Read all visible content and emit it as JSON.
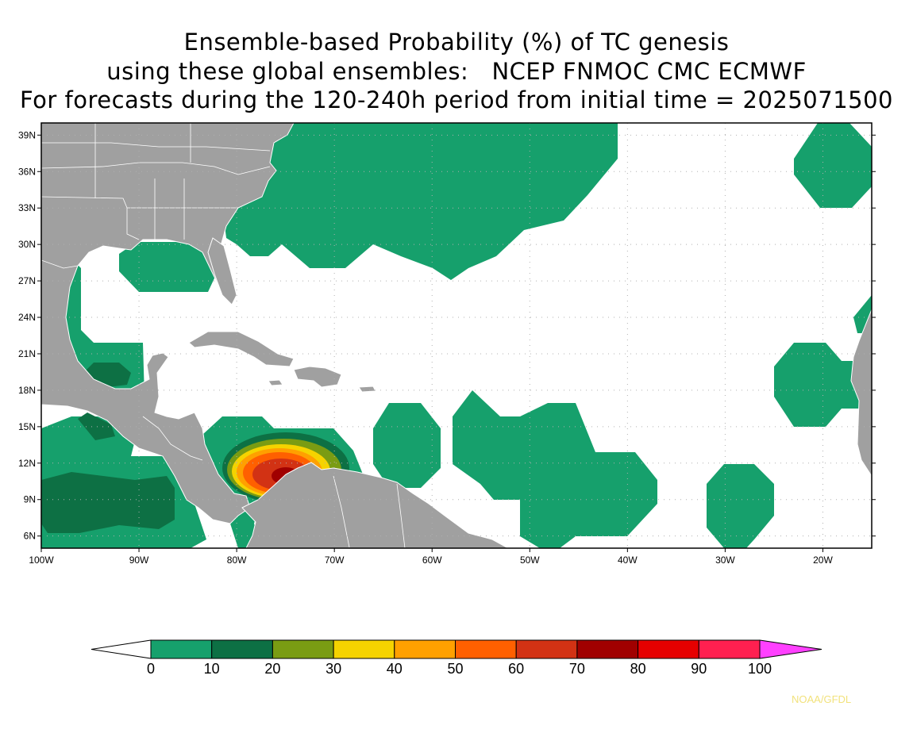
{
  "title_lines": [
    "Ensemble-based Probability (%) of TC genesis",
    "using these global ensembles:   NCEP FNMOC CMC ECMWF",
    "For forecasts during the 120-240h period from initial time = 2025071500"
  ],
  "map": {
    "lon_range": [
      -100,
      -15
    ],
    "lat_range": [
      5,
      40
    ],
    "lon_ticks": [
      {
        "value": -100,
        "label": "100W"
      },
      {
        "value": -90,
        "label": "90W"
      },
      {
        "value": -80,
        "label": "80W"
      },
      {
        "value": -70,
        "label": "70W"
      },
      {
        "value": -60,
        "label": "60W"
      },
      {
        "value": -50,
        "label": "50W"
      },
      {
        "value": -40,
        "label": "40W"
      },
      {
        "value": -30,
        "label": "30W"
      },
      {
        "value": -20,
        "label": "20W"
      }
    ],
    "lat_ticks": [
      {
        "value": 6,
        "label": "6N"
      },
      {
        "value": 9,
        "label": "9N"
      },
      {
        "value": 12,
        "label": "12N"
      },
      {
        "value": 15,
        "label": "15N"
      },
      {
        "value": 18,
        "label": "18N"
      },
      {
        "value": 21,
        "label": "21N"
      },
      {
        "value": 24,
        "label": "24N"
      },
      {
        "value": 27,
        "label": "27N"
      },
      {
        "value": 30,
        "label": "30N"
      },
      {
        "value": 33,
        "label": "33N"
      },
      {
        "value": 36,
        "label": "36N"
      },
      {
        "value": 39,
        "label": "39N"
      }
    ],
    "grid": "dotted",
    "land_color": "#a0a0a0",
    "ocean_color": "#ffffff"
  },
  "colorbar": {
    "levels": [
      0,
      10,
      20,
      30,
      40,
      50,
      60,
      70,
      80,
      90,
      100
    ],
    "colors": [
      "#16a06c",
      "#0d7044",
      "#7a9c13",
      "#f5d300",
      "#ffa000",
      "#ff6000",
      "#d23214",
      "#a00000",
      "#e60000",
      "#ff2050"
    ],
    "under_color": "#ffffff",
    "over_color": "#ff40ff"
  },
  "credit": "NOAA/GFDL"
}
